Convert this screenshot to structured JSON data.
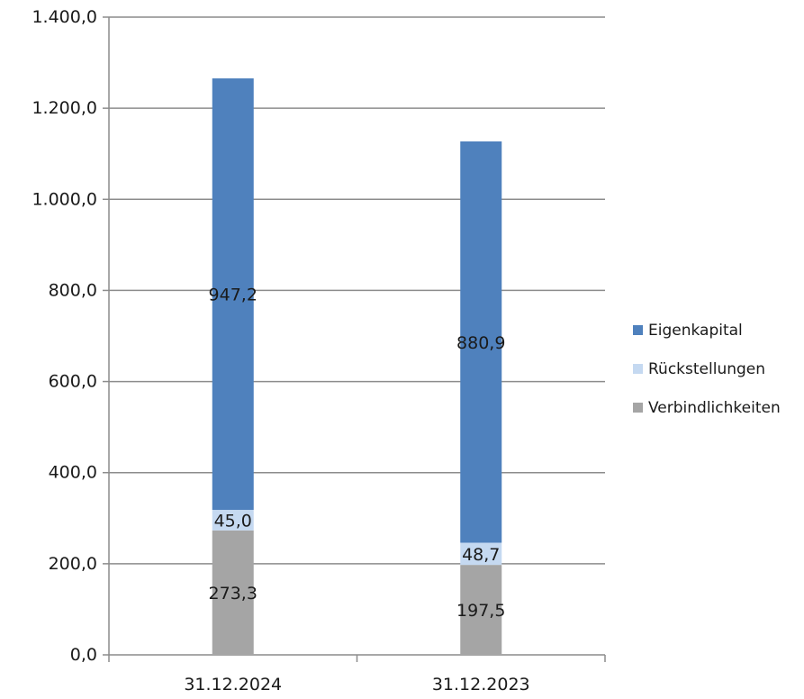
{
  "chart_data": {
    "type": "bar",
    "stacked": true,
    "categories": [
      "31.12.2024",
      "31.12.2023"
    ],
    "series": [
      {
        "name": "Verbindlichkeiten",
        "values": [
          273.3,
          197.5
        ],
        "labels": [
          "273,3",
          "197,5"
        ],
        "color": "#a5a5a5"
      },
      {
        "name": "Rückstellungen",
        "values": [
          45.0,
          48.7
        ],
        "labels": [
          "45,0",
          "48,7"
        ],
        "color": "#c5d9f1"
      },
      {
        "name": "Eigenkapital",
        "values": [
          947.2,
          880.9
        ],
        "labels": [
          "947,2",
          "880,9"
        ],
        "color": "#4f81bd"
      }
    ],
    "ylim": [
      0,
      1400
    ],
    "yticks": [
      0,
      200,
      400,
      600,
      800,
      1000,
      1200,
      1400
    ],
    "ytick_labels": [
      "0,0",
      "200,0",
      "400,0",
      "600,0",
      "800,0",
      "1.000,0",
      "1.200,0",
      "1.400,0"
    ],
    "grid": true,
    "legend_position": "right",
    "legend_order": [
      "Eigenkapital",
      "Rückstellungen",
      "Verbindlichkeiten"
    ],
    "title": "",
    "xlabel": "",
    "ylabel": ""
  }
}
